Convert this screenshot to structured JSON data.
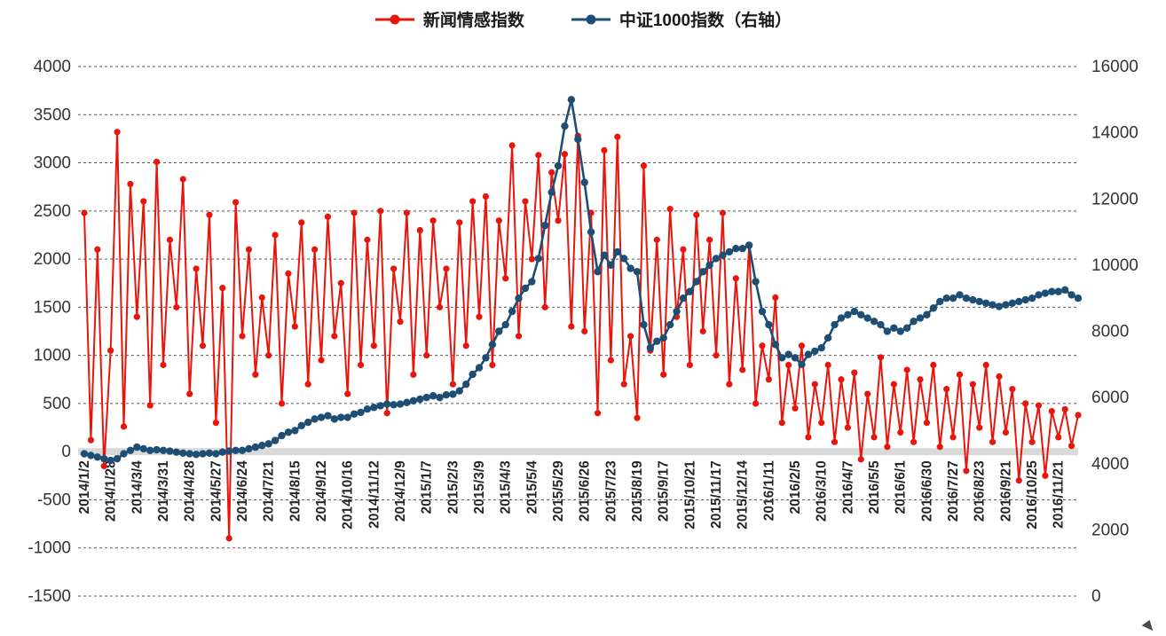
{
  "legend": {
    "sentiment_label": "新闻情感指数",
    "index_label": "中证1000指数（右轴）"
  },
  "chart_data": {
    "type": "line",
    "title": "",
    "legend_position": "top",
    "grid": "dashed-horizontal",
    "background": "#ffffff",
    "zero_band_color": "#d9d9d9",
    "grid_color": "#595959",
    "points_per_label": 4,
    "x_labels": [
      "2014/1/2",
      "2014/1/28",
      "2014/3/4",
      "2014/3/31",
      "2014/4/28",
      "2014/5/27",
      "2014/6/24",
      "2014/7/21",
      "2014/8/15",
      "2014/9/12",
      "2014/10/16",
      "2014/11/12",
      "2014/12/9",
      "2015/1/7",
      "2015/2/3",
      "2015/3/9",
      "2015/4/3",
      "2015/5/4",
      "2015/5/29",
      "2015/6/26",
      "2015/7/23",
      "2015/8/19",
      "2015/9/17",
      "2015/10/21",
      "2015/11/17",
      "2015/12/14",
      "2016/1/11",
      "2016/2/5",
      "2016/3/10",
      "2016/4/7",
      "2016/5/5",
      "2016/6/1",
      "2016/6/30",
      "2016/7/27",
      "2016/8/23",
      "2016/9/21",
      "2016/10/25",
      "2016/11/21"
    ],
    "left_axis": {
      "min": -1500,
      "max": 4000,
      "ticks": [
        4000,
        3500,
        3000,
        2500,
        2000,
        1500,
        1000,
        500,
        0,
        -500,
        -1000,
        -1500
      ]
    },
    "right_axis": {
      "min": 0,
      "max": 16000,
      "ticks": [
        16000,
        14000,
        12000,
        10000,
        8000,
        6000,
        4000,
        2000,
        0
      ]
    },
    "series": [
      {
        "name": "新闻情感指数",
        "axis": "left",
        "color": "#e8150d",
        "values": [
          2480,
          120,
          2100,
          -150,
          1050,
          3320,
          260,
          2780,
          1400,
          2600,
          480,
          3010,
          900,
          2200,
          1500,
          2830,
          600,
          1900,
          1100,
          2460,
          300,
          1700,
          -900,
          2590,
          1200,
          2100,
          800,
          1600,
          1000,
          2250,
          500,
          1850,
          1300,
          2380,
          700,
          2100,
          950,
          2440,
          1200,
          1750,
          600,
          2480,
          900,
          2200,
          1100,
          2500,
          400,
          1900,
          1350,
          2480,
          800,
          2300,
          1000,
          2400,
          1500,
          1900,
          700,
          2380,
          1100,
          2600,
          1400,
          2650,
          900,
          2400,
          1800,
          3180,
          1200,
          2600,
          2000,
          3080,
          1500,
          2900,
          2400,
          3090,
          1300,
          3280,
          1250,
          2480,
          400,
          3130,
          950,
          3270,
          700,
          1200,
          350,
          2970,
          1050,
          2200,
          800,
          2520,
          1400,
          2100,
          900,
          2460,
          1250,
          2200,
          1000,
          2480,
          700,
          1800,
          850,
          2140,
          500,
          1100,
          750,
          1600,
          300,
          900,
          450,
          1100,
          150,
          700,
          300,
          900,
          100,
          750,
          250,
          820,
          -80,
          600,
          150,
          980,
          50,
          700,
          200,
          850,
          100,
          750,
          300,
          900,
          50,
          650,
          150,
          800,
          -200,
          700,
          250,
          900,
          100,
          780,
          200,
          650,
          -300,
          500,
          100,
          480,
          -250,
          420,
          150,
          440,
          60,
          380
        ]
      },
      {
        "name": "中证1000指数（右轴）",
        "axis": "right",
        "color": "#1e4e74",
        "values": [
          4300,
          4250,
          4200,
          4150,
          4100,
          4150,
          4300,
          4400,
          4500,
          4450,
          4400,
          4420,
          4400,
          4380,
          4350,
          4320,
          4300,
          4280,
          4300,
          4320,
          4300,
          4350,
          4380,
          4400,
          4400,
          4450,
          4500,
          4550,
          4600,
          4700,
          4850,
          4950,
          5000,
          5150,
          5250,
          5350,
          5400,
          5450,
          5350,
          5400,
          5400,
          5500,
          5550,
          5650,
          5700,
          5750,
          5800,
          5780,
          5800,
          5850,
          5900,
          5950,
          6000,
          6050,
          6000,
          6080,
          6100,
          6200,
          6400,
          6700,
          6900,
          7200,
          7600,
          8000,
          8200,
          8600,
          9000,
          9300,
          9500,
          10200,
          11200,
          12200,
          13000,
          14200,
          15000,
          13800,
          12500,
          11000,
          9800,
          10300,
          10000,
          10400,
          10200,
          9900,
          9800,
          8200,
          7500,
          7700,
          7800,
          8200,
          8600,
          9000,
          9200,
          9500,
          9800,
          10000,
          10200,
          10300,
          10400,
          10500,
          10500,
          10600,
          9500,
          8600,
          8200,
          7600,
          7200,
          7300,
          7200,
          7000,
          7300,
          7400,
          7500,
          7800,
          8200,
          8400,
          8500,
          8600,
          8500,
          8400,
          8300,
          8200,
          8000,
          8100,
          8000,
          8100,
          8300,
          8400,
          8500,
          8700,
          8900,
          9000,
          9000,
          9100,
          9000,
          8950,
          8900,
          8850,
          8800,
          8750,
          8800,
          8850,
          8900,
          8950,
          9000,
          9100,
          9150,
          9200,
          9200,
          9250,
          9100,
          9000
        ]
      }
    ]
  }
}
